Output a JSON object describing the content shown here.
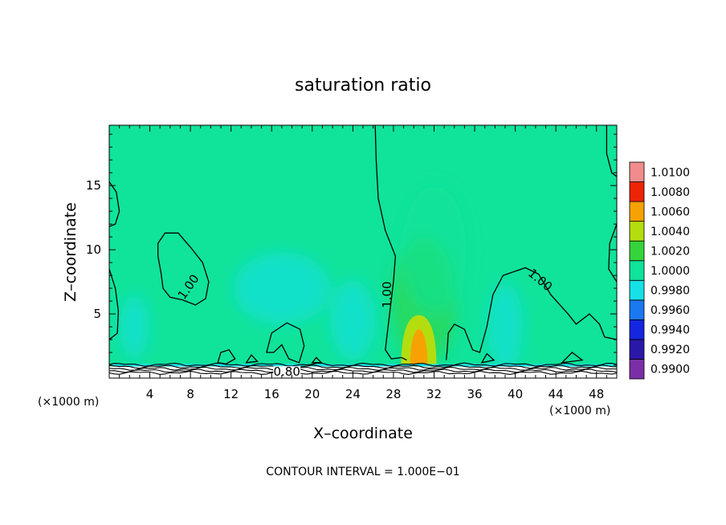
{
  "chart_data": {
    "type": "heatmap",
    "title": "saturation ratio",
    "xlabel": "X–coordinate",
    "ylabel": "Z–coordinate",
    "x_unit_label": "(×1000 m)",
    "x_unit_label_right": "(×1000 m)",
    "footer": "CONTOUR INTERVAL = 1.000E−01",
    "xlim": [
      0,
      50
    ],
    "ylim": [
      0,
      19.7
    ],
    "xticks": [
      4,
      8,
      12,
      16,
      20,
      24,
      28,
      32,
      36,
      40,
      44,
      48
    ],
    "xtick_labels": [
      "4",
      "8",
      "12",
      "16",
      "20",
      "24",
      "28",
      "32",
      "36",
      "40",
      "44",
      "48"
    ],
    "yticks": [
      5,
      10,
      15
    ],
    "ytick_labels": [
      "5",
      "10",
      "15"
    ],
    "colorbar": {
      "levels": [
        0.99,
        0.992,
        0.994,
        0.996,
        0.998,
        1.0,
        1.002,
        1.004,
        1.006,
        1.008,
        1.01
      ],
      "labels": [
        "0.9900",
        "0.9920",
        "0.9940",
        "0.9960",
        "0.9980",
        "1.0000",
        "1.0020",
        "1.0040",
        "1.0060",
        "1.0080",
        "1.0100"
      ],
      "colors": [
        "#7b2fa6",
        "#2a18a8",
        "#1426e0",
        "#1a78f0",
        "#18e0e8",
        "#10e39a",
        "#34d43a",
        "#b4dd10",
        "#f7a204",
        "#ee2406",
        "#f08c8c"
      ]
    },
    "background_value": 1.0001,
    "plumes": [
      {
        "x": 30.5,
        "z": 2.5,
        "value": 1.0075
      },
      {
        "x": 31.0,
        "z": 6.0,
        "value": 1.0025
      },
      {
        "x": 32.0,
        "z": 10.0,
        "value": 1.001
      },
      {
        "x": 39.0,
        "z": 4.0,
        "value": 0.9985
      },
      {
        "x": 24.0,
        "z": 4.5,
        "value": 0.999
      },
      {
        "x": 17.0,
        "z": 7.0,
        "value": 0.9995
      },
      {
        "x": 2.5,
        "z": 4.0,
        "value": 0.9992
      }
    ],
    "contour_labels": [
      {
        "text": "1.00",
        "x": 8.0,
        "z": 7.0,
        "angle": -55
      },
      {
        "text": "1.00",
        "x": 27.6,
        "z": 6.5,
        "angle": -90
      },
      {
        "text": "1.00",
        "x": 42.3,
        "z": 7.5,
        "angle": 40
      },
      {
        "text": "0.80",
        "x": 17.5,
        "z": 0.3,
        "angle": 0
      }
    ]
  }
}
